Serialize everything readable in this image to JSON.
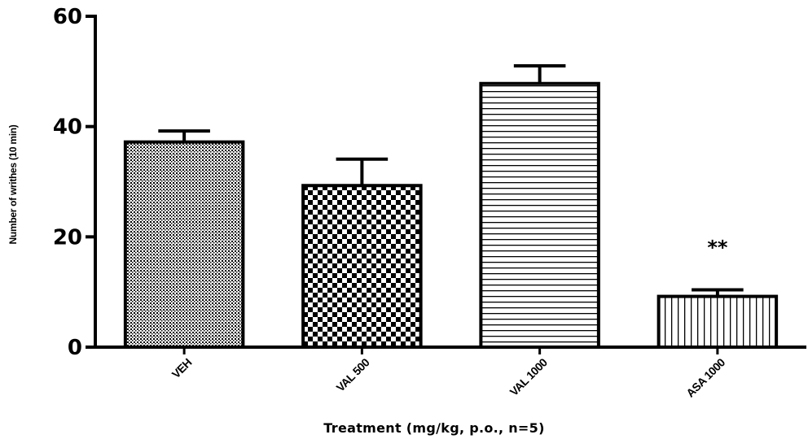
{
  "chart_data": {
    "type": "bar",
    "categories": [
      "VEH",
      "VAL 500",
      "VAL 1000",
      "ASA 1000"
    ],
    "values": [
      37.2,
      29.3,
      47.8,
      9.2
    ],
    "errors": [
      2.0,
      4.8,
      3.2,
      1.2
    ],
    "annotations": [
      "",
      "",
      "",
      "**"
    ],
    "patterns": [
      "dots",
      "checker",
      "hlines",
      "vlines"
    ],
    "xlabel": "Treatment (mg/kg, p.o., n=5)",
    "ylabel": "Number of writhes (10 min)",
    "ylim": [
      0,
      60
    ],
    "yticks": [
      "0",
      "20",
      "40",
      "60"
    ],
    "grid": false,
    "bar_color": "#000000",
    "background": "#ffffff"
  }
}
